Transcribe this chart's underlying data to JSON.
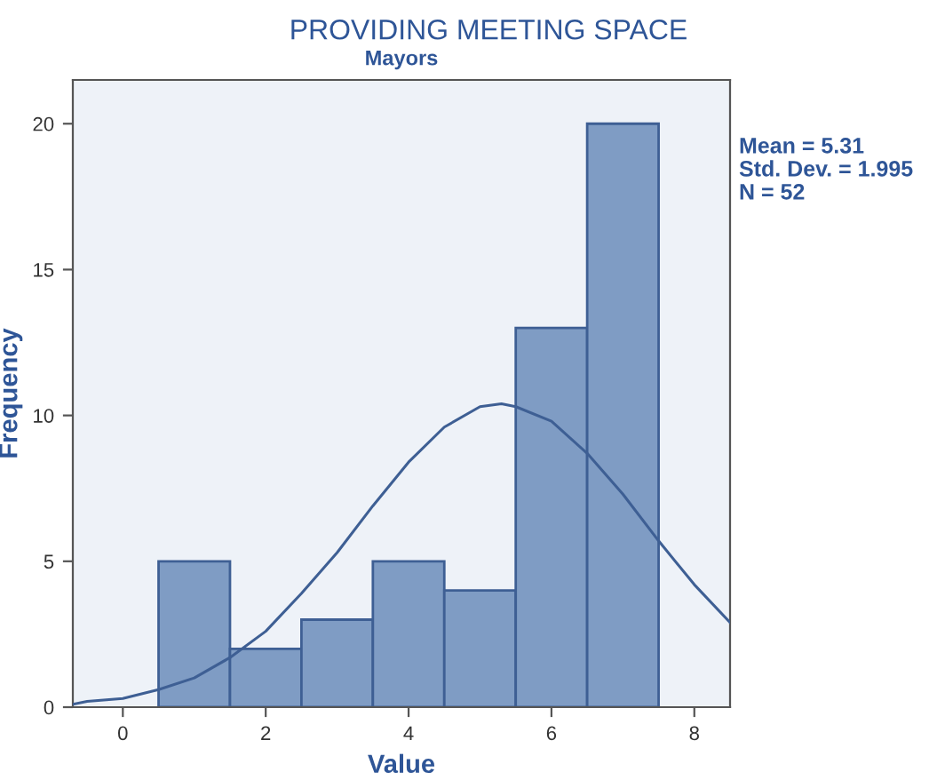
{
  "chart_data": {
    "type": "histogram",
    "title": "PROVIDING MEETING SPACE",
    "subtitle": "Mayors",
    "xlabel": "Value",
    "ylabel": "Frequency",
    "bins": [
      0.5,
      1.5,
      2.5,
      3.5,
      4.5,
      5.5,
      6.5,
      7.5
    ],
    "values": [
      5,
      2,
      3,
      5,
      4,
      13,
      20
    ],
    "color": "#7f9cc4",
    "series": [
      {
        "type": "line",
        "color": "#3e5f94",
        "x": [
          -0.7,
          -0.5,
          0,
          0.5,
          1,
          1.5,
          2,
          2.5,
          3,
          3.5,
          4,
          4.5,
          5,
          5.3,
          5.5,
          6,
          6.5,
          7,
          7.5,
          8,
          8.5
        ],
        "values": [
          0.1,
          0.2,
          0.3,
          0.6,
          1.0,
          1.7,
          2.6,
          3.9,
          5.3,
          6.9,
          8.4,
          9.6,
          10.3,
          10.4,
          10.3,
          9.8,
          8.7,
          7.3,
          5.7,
          4.2,
          2.9
        ]
      }
    ],
    "annotations": [
      "Mean = 5.31",
      "Std. Dev. = 1.995",
      "N = 52"
    ],
    "xlim": [
      -0.7,
      8.5
    ],
    "xticks": [
      0,
      2,
      4,
      6,
      8
    ],
    "ylim": [
      0,
      21.5
    ],
    "yticks": [
      0,
      5,
      10,
      15,
      20
    ],
    "grid": false,
    "legend": false
  }
}
